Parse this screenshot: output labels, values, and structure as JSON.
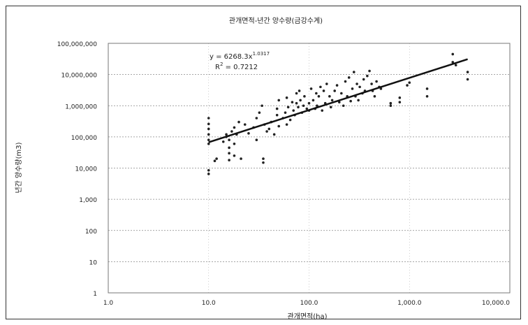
{
  "chart_data": {
    "type": "scatter",
    "title": "관개면적-년간 양수량(금강수계)",
    "xlabel": "관개면적(ha)",
    "ylabel": "년간 양수량(m3)",
    "x_scale": "log",
    "y_scale": "log",
    "xlim": [
      1,
      10000
    ],
    "ylim": [
      1,
      100000000
    ],
    "grid": true,
    "x_tick_labels": [
      "1.0",
      "10.0",
      "100.0",
      "1,000.0",
      "10,000.0"
    ],
    "y_tick_labels": [
      "1",
      "10",
      "100",
      "1,000",
      "10,000",
      "100,000",
      "1,000,000",
      "10,000,000",
      "100,000,000"
    ],
    "x_ticks": [
      1,
      10,
      100,
      1000,
      10000
    ],
    "y_ticks": [
      1,
      10,
      100,
      1000,
      10000,
      100000,
      1000000,
      10000000,
      100000000
    ],
    "trendline": {
      "a": 6268.3,
      "b": 1.0317,
      "x_range": [
        10,
        3800
      ]
    },
    "equation_label": "y = 6268.3x",
    "equation_exponent": "1.0317",
    "r2_label": "R",
    "r2_sup": "2",
    "r2_value": " = 0.7212",
    "points": [
      [
        10,
        6500
      ],
      [
        10,
        8500
      ],
      [
        10,
        60000
      ],
      [
        10,
        80000
      ],
      [
        10,
        120000
      ],
      [
        10,
        180000
      ],
      [
        10,
        260000
      ],
      [
        10,
        400000
      ],
      [
        11.5,
        17000
      ],
      [
        12,
        20000
      ],
      [
        14,
        70000
      ],
      [
        15,
        100000
      ],
      [
        15,
        120000
      ],
      [
        16,
        18000
      ],
      [
        16,
        30000
      ],
      [
        16,
        45000
      ],
      [
        16,
        80000
      ],
      [
        17,
        150000
      ],
      [
        18,
        25000
      ],
      [
        18,
        60000
      ],
      [
        18,
        200000
      ],
      [
        19,
        120000
      ],
      [
        20,
        300000
      ],
      [
        21,
        20000
      ],
      [
        23,
        250000
      ],
      [
        25,
        130000
      ],
      [
        28,
        200000
      ],
      [
        30,
        80000
      ],
      [
        30,
        400000
      ],
      [
        32,
        600000
      ],
      [
        34,
        1000000
      ],
      [
        35,
        15000
      ],
      [
        35,
        20000
      ],
      [
        36,
        250000
      ],
      [
        38,
        150000
      ],
      [
        40,
        180000
      ],
      [
        42,
        300000
      ],
      [
        45,
        120000
      ],
      [
        48,
        500000
      ],
      [
        48,
        800000
      ],
      [
        50,
        1500000
      ],
      [
        50,
        220000
      ],
      [
        55,
        400000
      ],
      [
        58,
        600000
      ],
      [
        60,
        1800000
      ],
      [
        60,
        250000
      ],
      [
        62,
        900000
      ],
      [
        65,
        350000
      ],
      [
        68,
        1300000
      ],
      [
        70,
        700000
      ],
      [
        72,
        500000
      ],
      [
        75,
        2500000
      ],
      [
        75,
        1200000
      ],
      [
        78,
        900000
      ],
      [
        80,
        3000000
      ],
      [
        82,
        1500000
      ],
      [
        85,
        600000
      ],
      [
        88,
        1000000
      ],
      [
        90,
        2000000
      ],
      [
        95,
        800000
      ],
      [
        100,
        1200000
      ],
      [
        100,
        700000
      ],
      [
        105,
        3500000
      ],
      [
        110,
        1500000
      ],
      [
        115,
        800000
      ],
      [
        118,
        2500000
      ],
      [
        120,
        1000000
      ],
      [
        125,
        2000000
      ],
      [
        130,
        4000000
      ],
      [
        135,
        700000
      ],
      [
        140,
        3000000
      ],
      [
        145,
        1200000
      ],
      [
        150,
        5000000
      ],
      [
        160,
        2000000
      ],
      [
        165,
        900000
      ],
      [
        170,
        1500000
      ],
      [
        180,
        3000000
      ],
      [
        190,
        4500000
      ],
      [
        200,
        1300000
      ],
      [
        210,
        2500000
      ],
      [
        220,
        1000000
      ],
      [
        230,
        6000000
      ],
      [
        240,
        2000000
      ],
      [
        250,
        8000000
      ],
      [
        260,
        1400000
      ],
      [
        270,
        3500000
      ],
      [
        280,
        12000000
      ],
      [
        290,
        2000000
      ],
      [
        300,
        5000000
      ],
      [
        310,
        1500000
      ],
      [
        320,
        4000000
      ],
      [
        340,
        2500000
      ],
      [
        350,
        7000000
      ],
      [
        360,
        3000000
      ],
      [
        380,
        9000000
      ],
      [
        400,
        13000000
      ],
      [
        420,
        5000000
      ],
      [
        430,
        3000000
      ],
      [
        450,
        2000000
      ],
      [
        470,
        6000000
      ],
      [
        500,
        4000000
      ],
      [
        520,
        3500000
      ],
      [
        650,
        1000000
      ],
      [
        650,
        1200000
      ],
      [
        800,
        1300000
      ],
      [
        800,
        1800000
      ],
      [
        950,
        4500000
      ],
      [
        1000,
        5500000
      ],
      [
        1500,
        2000000
      ],
      [
        1500,
        3500000
      ],
      [
        2700,
        25000000
      ],
      [
        2700,
        45000000
      ],
      [
        2900,
        20000000
      ],
      [
        3800,
        7000000
      ],
      [
        3800,
        12000000
      ]
    ]
  }
}
